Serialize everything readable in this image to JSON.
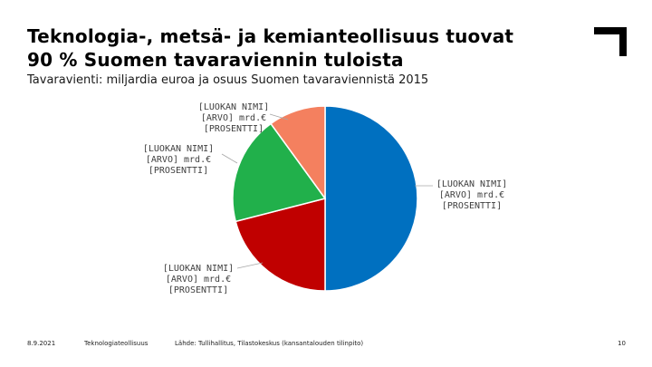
{
  "header": {
    "title_line1": "Teknologia-, metsä- ja kemianteollisuus tuovat",
    "title_line2": "90 % Suomen tavaraviennin tuloista",
    "subtitle": "Tavaravienti: miljardia euroa ja osuus Suomen tavaraviennistä 2015"
  },
  "chart_data": {
    "type": "pie",
    "slices": [
      {
        "label_lines": [
          "[LUOKAN NIMI]",
          "[ARVO] mrd.€",
          "[PROSENTTI]"
        ],
        "share": 0.5,
        "color": "#0070C0"
      },
      {
        "label_lines": [
          "[LUOKAN NIMI]",
          "[ARVO] mrd.€",
          "[PROSENTTI]"
        ],
        "share": 0.21,
        "color": "#C00000"
      },
      {
        "label_lines": [
          "[LUOKAN NIMI]",
          "[ARVO] mrd.€",
          "[PROSENTTI]"
        ],
        "share": 0.19,
        "color": "#21B04B"
      },
      {
        "label_lines": [
          "[LUOKAN NIMI]",
          "[ARVO] mrd.€",
          "[PROSENTTI]"
        ],
        "share": 0.1,
        "color": "#F4805F"
      }
    ]
  },
  "footer": {
    "date": "8.9.2021",
    "org": "Teknologiateollisuus",
    "source": "Lähde: Tullihallitus, Tilastokeskus (kansantalouden tilinpito)",
    "page": "10"
  },
  "colors": {
    "logo": "#000000"
  }
}
